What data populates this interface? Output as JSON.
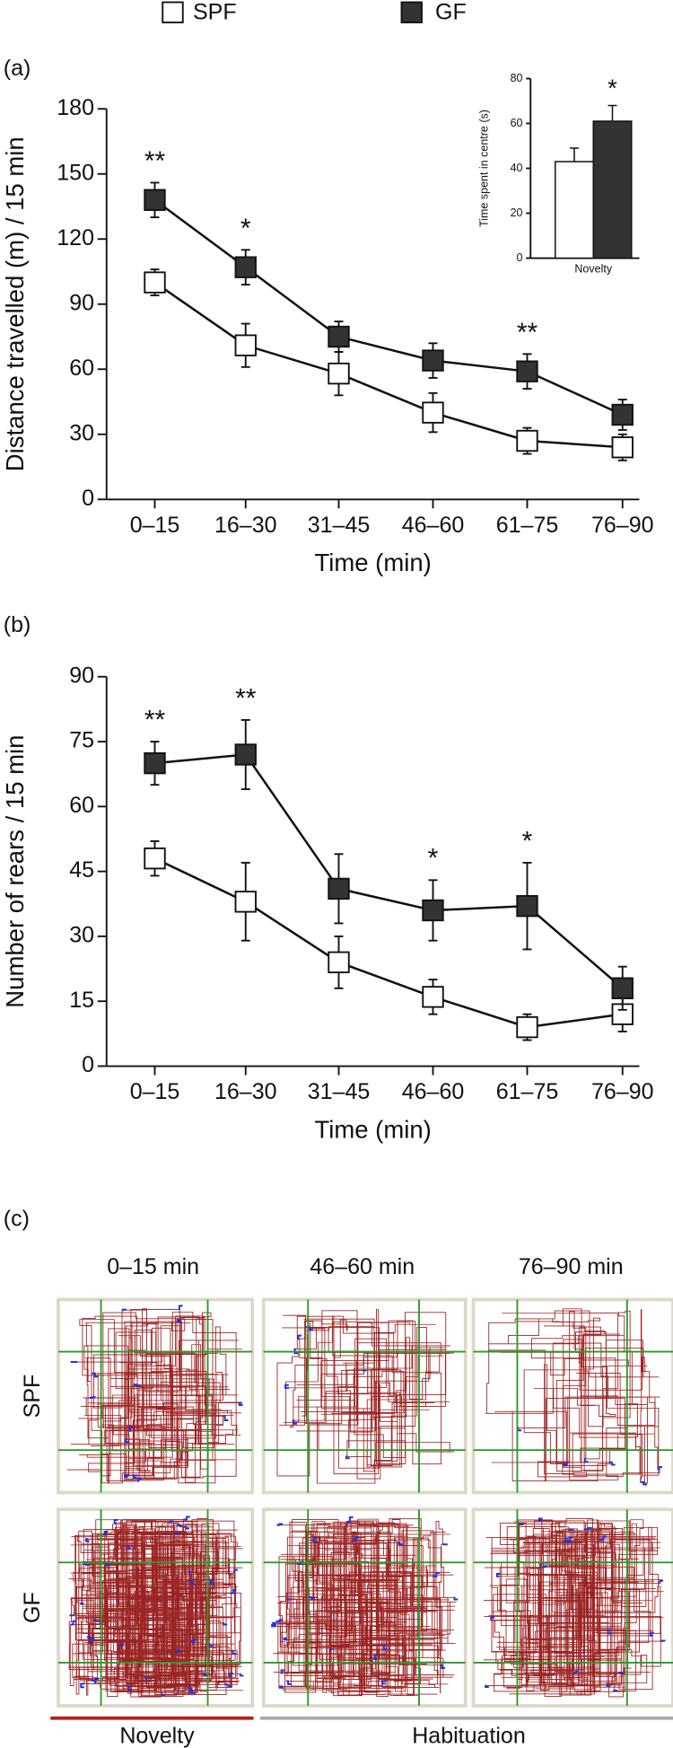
{
  "legend_position": "top",
  "chart_data": [
    {
      "type": "line",
      "panel_label": "(a)",
      "x_label": "Time (min)",
      "y_label": "Distance travelled (m) / 15 min",
      "categories": [
        "0–15",
        "16–30",
        "31–45",
        "46–60",
        "61–75",
        "76–90"
      ],
      "series": [
        {
          "name": "SPF",
          "color": "#ffffff",
          "values": [
            100,
            71,
            58,
            40,
            27,
            24
          ],
          "errors": [
            6,
            10,
            10,
            9,
            6,
            6
          ]
        },
        {
          "name": "GF",
          "color": "#333333",
          "values": [
            138,
            107,
            75,
            64,
            59,
            39
          ],
          "errors": [
            8,
            8,
            7,
            8,
            8,
            7
          ]
        }
      ],
      "significance": [
        "**",
        "*",
        null,
        null,
        "**",
        null
      ],
      "ylim": [
        0,
        180
      ],
      "yticks": [
        0,
        30,
        60,
        90,
        120,
        150,
        180
      ]
    },
    {
      "type": "bar",
      "y_label": "Time spent in centre (s)",
      "categories": [
        "Novelty"
      ],
      "series": [
        {
          "name": "SPF",
          "color": "#ffffff",
          "values": [
            43
          ],
          "errors": [
            6
          ]
        },
        {
          "name": "GF",
          "color": "#333333",
          "values": [
            61
          ],
          "errors": [
            7
          ]
        }
      ],
      "significance": [
        "*"
      ],
      "ylim": [
        0,
        80
      ],
      "yticks": [
        0,
        20,
        40,
        60,
        80
      ]
    },
    {
      "type": "line",
      "panel_label": "(b)",
      "x_label": "Time (min)",
      "y_label": "Number of rears / 15 min",
      "categories": [
        "0–15",
        "16–30",
        "31–45",
        "46–60",
        "61–75",
        "76–90"
      ],
      "series": [
        {
          "name": "SPF",
          "color": "#ffffff",
          "values": [
            48,
            38,
            24,
            16,
            9,
            12
          ],
          "errors": [
            4,
            9,
            6,
            4,
            3,
            4
          ]
        },
        {
          "name": "GF",
          "color": "#333333",
          "values": [
            70,
            72,
            41,
            36,
            37,
            18
          ],
          "errors": [
            5,
            8,
            8,
            7,
            10,
            5
          ]
        }
      ],
      "significance": [
        "**",
        "**",
        null,
        "*",
        "*",
        null
      ],
      "ylim": [
        0,
        90
      ],
      "yticks": [
        0,
        15,
        30,
        45,
        60,
        75,
        90
      ]
    }
  ],
  "panel_c": {
    "panel_label": "(c)",
    "columns": [
      "0–15 min",
      "46–60 min",
      "76–90 min"
    ],
    "rows": [
      "SPF",
      "GF"
    ],
    "phases": [
      "Novelty",
      "Habituation"
    ]
  }
}
